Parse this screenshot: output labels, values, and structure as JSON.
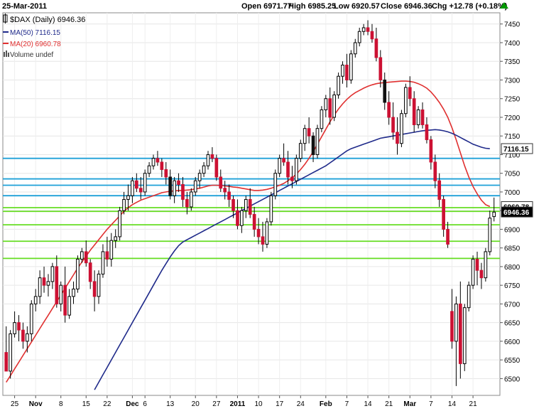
{
  "header": {
    "date": "25-Mar-2011",
    "open": "Open 6971.77",
    "high": "High 6985.25",
    "low": "Low 6920.57",
    "close": "Close 6946.36",
    "chg": "Chg +12.78 (+0.18%)",
    "chg_arrow_color": "#009900"
  },
  "legend": {
    "symbol_line": "$DAX (Daily) 6946.36",
    "ma50_line": "MA(50) 7116.15",
    "ma20_line": "MA(20) 6960.78",
    "volume_line": "Volume undef",
    "ma50_color": "#1f2a8a",
    "ma20_color": "#e03030"
  },
  "price_tags": {
    "ma50": "7116.15",
    "ma20": "6960.78",
    "last": "6946.36"
  },
  "chart_data": {
    "type": "candlestick",
    "yticks": [
      6500,
      6550,
      6600,
      6650,
      6700,
      6750,
      6800,
      6850,
      6900,
      6950,
      7000,
      7050,
      7100,
      7150,
      7200,
      7250,
      7300,
      7350,
      7400,
      7450
    ],
    "ylim": [
      6455,
      7480
    ],
    "xticks": [
      {
        "i": 2,
        "label": "25"
      },
      {
        "i": 7,
        "label": "Nov"
      },
      {
        "i": 13,
        "label": "8"
      },
      {
        "i": 19,
        "label": "15"
      },
      {
        "i": 24,
        "label": "22"
      },
      {
        "i": 30,
        "label": "Dec"
      },
      {
        "i": 33,
        "label": "6"
      },
      {
        "i": 39,
        "label": "13"
      },
      {
        "i": 45,
        "label": "20"
      },
      {
        "i": 50,
        "label": "27"
      },
      {
        "i": 55,
        "label": "2011"
      },
      {
        "i": 60,
        "label": "10"
      },
      {
        "i": 65,
        "label": "17"
      },
      {
        "i": 70,
        "label": "24"
      },
      {
        "i": 76,
        "label": "Feb"
      },
      {
        "i": 81,
        "label": "7"
      },
      {
        "i": 86,
        "label": "14"
      },
      {
        "i": 91,
        "label": "21"
      },
      {
        "i": 96,
        "label": "Mar"
      },
      {
        "i": 101,
        "label": "7"
      },
      {
        "i": 106,
        "label": "14"
      },
      {
        "i": 111,
        "label": "21"
      }
    ],
    "hlines_blue": [
      7090,
      7035,
      7018,
      6990
    ],
    "hlines_green": [
      6958,
      6948,
      6912,
      6868,
      6822
    ],
    "blue_line_color": "#1ea0d8",
    "green_line_color": "#66dd22",
    "bull_color": "#ffffff",
    "bear_color": "#cc1133",
    "bear_dark_color": "#111111",
    "candles": [
      [
        6570,
        6640,
        6530,
        6520
      ],
      [
        6520,
        6630,
        6500,
        6620
      ],
      [
        6620,
        6680,
        6610,
        6650
      ],
      [
        6650,
        6670,
        6600,
        6630
      ],
      [
        6630,
        6650,
        6580,
        6600
      ],
      [
        6600,
        6640,
        6570,
        6620
      ],
      [
        6620,
        6710,
        6600,
        6700
      ],
      [
        6700,
        6740,
        6680,
        6720
      ],
      [
        6720,
        6790,
        6700,
        6770
      ],
      [
        6770,
        6800,
        6730,
        6750
      ],
      [
        6750,
        6780,
        6720,
        6760
      ],
      [
        6760,
        6810,
        6740,
        6800
      ],
      [
        6800,
        6830,
        6690,
        6700
      ],
      [
        6700,
        6760,
        6680,
        6750
      ],
      [
        6750,
        6800,
        6650,
        6670
      ],
      [
        6670,
        6740,
        6660,
        6720
      ],
      [
        6720,
        6760,
        6700,
        6740
      ],
      [
        6740,
        6830,
        6730,
        6820
      ],
      [
        6820,
        6850,
        6810,
        6840
      ],
      [
        6840,
        6870,
        6800,
        6810
      ],
      [
        6810,
        6820,
        6740,
        6760
      ],
      [
        6760,
        6790,
        6680,
        6720
      ],
      [
        6720,
        6790,
        6700,
        6780
      ],
      [
        6780,
        6860,
        6770,
        6840
      ],
      [
        6840,
        6880,
        6800,
        6820
      ],
      [
        6820,
        6890,
        6800,
        6870
      ],
      [
        6870,
        6900,
        6850,
        6880
      ],
      [
        6880,
        6960,
        6870,
        6950
      ],
      [
        6950,
        7000,
        6940,
        6980
      ],
      [
        6980,
        7020,
        6950,
        6990
      ],
      [
        6990,
        7040,
        6970,
        7030
      ],
      [
        7030,
        7050,
        7000,
        7010
      ],
      [
        7010,
        7040,
        6980,
        7000
      ],
      [
        7000,
        7060,
        6990,
        7050
      ],
      [
        7050,
        7080,
        7040,
        7070
      ],
      [
        7070,
        7100,
        7060,
        7090
      ],
      [
        7090,
        7110,
        7070,
        7080
      ],
      [
        7080,
        7090,
        7040,
        7060
      ],
      [
        7060,
        7080,
        7020,
        7040
      ],
      [
        7040,
        7060,
        6980,
        6990
      ],
      [
        6990,
        7040,
        6970,
        7030
      ],
      [
        7030,
        7050,
        7000,
        7020
      ],
      [
        7020,
        7040,
        6960,
        6980
      ],
      [
        6980,
        7000,
        6940,
        6960
      ],
      [
        6960,
        7010,
        6950,
        7000
      ],
      [
        7000,
        7040,
        6990,
        7030
      ],
      [
        7030,
        7060,
        7010,
        7050
      ],
      [
        7050,
        7080,
        7040,
        7070
      ],
      [
        7070,
        7110,
        7060,
        7100
      ],
      [
        7100,
        7120,
        7080,
        7090
      ],
      [
        7090,
        7100,
        7030,
        7040
      ],
      [
        7040,
        7060,
        7000,
        7010
      ],
      [
        7010,
        7030,
        6980,
        7000
      ],
      [
        7000,
        7020,
        6960,
        6980
      ],
      [
        6980,
        6990,
        6930,
        6950
      ],
      [
        6950,
        6980,
        6900,
        6910
      ],
      [
        6910,
        6960,
        6890,
        6950
      ],
      [
        6950,
        6990,
        6930,
        6980
      ],
      [
        6980,
        7010,
        6930,
        6940
      ],
      [
        6940,
        6960,
        6880,
        6900
      ],
      [
        6900,
        6930,
        6860,
        6880
      ],
      [
        6880,
        6920,
        6840,
        6860
      ],
      [
        6860,
        6930,
        6850,
        6920
      ],
      [
        6920,
        7000,
        6910,
        6990
      ],
      [
        6990,
        7060,
        6980,
        7050
      ],
      [
        7050,
        7100,
        7040,
        7090
      ],
      [
        7090,
        7130,
        7070,
        7080
      ],
      [
        7080,
        7110,
        7020,
        7040
      ],
      [
        7040,
        7070,
        7010,
        7030
      ],
      [
        7030,
        7100,
        7020,
        7090
      ],
      [
        7090,
        7140,
        7080,
        7130
      ],
      [
        7130,
        7180,
        7110,
        7170
      ],
      [
        7170,
        7200,
        7130,
        7150
      ],
      [
        7150,
        7160,
        7080,
        7100
      ],
      [
        7100,
        7180,
        7090,
        7170
      ],
      [
        7170,
        7230,
        7160,
        7220
      ],
      [
        7220,
        7260,
        7200,
        7250
      ],
      [
        7250,
        7280,
        7180,
        7200
      ],
      [
        7200,
        7270,
        7190,
        7260
      ],
      [
        7260,
        7320,
        7250,
        7310
      ],
      [
        7310,
        7350,
        7290,
        7340
      ],
      [
        7340,
        7370,
        7280,
        7300
      ],
      [
        7300,
        7380,
        7290,
        7370
      ],
      [
        7370,
        7410,
        7360,
        7400
      ],
      [
        7400,
        7440,
        7390,
        7430
      ],
      [
        7430,
        7450,
        7420,
        7440
      ],
      [
        7440,
        7460,
        7420,
        7430
      ],
      [
        7430,
        7450,
        7400,
        7410
      ],
      [
        7410,
        7440,
        7350,
        7360
      ],
      [
        7360,
        7380,
        7280,
        7300
      ],
      [
        7300,
        7320,
        7220,
        7240
      ],
      [
        7240,
        7270,
        7180,
        7200
      ],
      [
        7200,
        7240,
        7140,
        7160
      ],
      [
        7160,
        7200,
        7100,
        7130
      ],
      [
        7130,
        7220,
        7120,
        7210
      ],
      [
        7210,
        7290,
        7200,
        7280
      ],
      [
        7280,
        7310,
        7230,
        7250
      ],
      [
        7250,
        7270,
        7160,
        7180
      ],
      [
        7180,
        7230,
        7170,
        7220
      ],
      [
        7220,
        7240,
        7170,
        7180
      ],
      [
        7180,
        7200,
        7130,
        7140
      ],
      [
        7140,
        7150,
        7060,
        7080
      ],
      [
        7080,
        7100,
        7010,
        7030
      ],
      [
        7030,
        7050,
        6960,
        6980
      ],
      [
        6980,
        6990,
        6880,
        6900
      ],
      [
        6900,
        6920,
        6850,
        6860
      ],
      [
        6680,
        6740,
        6580,
        6600
      ],
      [
        6600,
        6720,
        6480,
        6700
      ],
      [
        6700,
        6760,
        6500,
        6540
      ],
      [
        6540,
        6700,
        6520,
        6690
      ],
      [
        6690,
        6760,
        6680,
        6750
      ],
      [
        6750,
        6830,
        6740,
        6820
      ],
      [
        6820,
        6840,
        6750,
        6790
      ],
      [
        6790,
        6810,
        6740,
        6770
      ],
      [
        6770,
        6850,
        6760,
        6840
      ],
      [
        6840,
        6950,
        6830,
        6930
      ],
      [
        6934,
        6985,
        6921,
        6946
      ]
    ],
    "ma20": [
      6490,
      6508,
      6526,
      6544,
      6562,
      6580,
      6598,
      6616,
      6634,
      6652,
      6670,
      6688,
      6706,
      6724,
      6742,
      6760,
      6778,
      6796,
      6812,
      6828,
      6844,
      6858,
      6872,
      6886,
      6900,
      6912,
      6924,
      6936,
      6948,
      6958,
      6966,
      6972,
      6978,
      6982,
      6986,
      6990,
      6994,
      6998,
      7000,
      7002,
      7003,
      7004,
      7004,
      7005,
      7006,
      7008,
      7010,
      7013,
      7016,
      7018,
      7018,
      7017,
      7016,
      7015,
      7013,
      7012,
      7010,
      7008,
      7006,
      7004,
      7004,
      7005,
      7007,
      7010,
      7014,
      7018,
      7023,
      7030,
      7038,
      7048,
      7060,
      7074,
      7090,
      7108,
      7128,
      7148,
      7168,
      7188,
      7206,
      7222,
      7236,
      7248,
      7258,
      7266,
      7272,
      7278,
      7283,
      7287,
      7290,
      7292,
      7293,
      7294,
      7295,
      7296,
      7297,
      7297,
      7296,
      7294,
      7290,
      7285,
      7278,
      7268,
      7255,
      7240,
      7222,
      7200,
      7172,
      7140,
      7105,
      7070,
      7040,
      7015,
      6995,
      6978,
      6966,
      6961
    ],
    "ma50": [
      null,
      null,
      null,
      null,
      null,
      null,
      null,
      null,
      null,
      null,
      null,
      null,
      null,
      null,
      null,
      null,
      null,
      null,
      null,
      null,
      null,
      6470,
      6490,
      6510,
      6530,
      6550,
      6570,
      6590,
      6610,
      6630,
      6650,
      6670,
      6690,
      6710,
      6730,
      6750,
      6770,
      6790,
      6808,
      6826,
      6842,
      6856,
      6866,
      6872,
      6878,
      6884,
      6890,
      6896,
      6902,
      6908,
      6914,
      6920,
      6926,
      6932,
      6938,
      6944,
      6950,
      6956,
      6962,
      6968,
      6974,
      6980,
      6986,
      6992,
      6998,
      7004,
      7010,
      7016,
      7022,
      7028,
      7034,
      7040,
      7046,
      7052,
      7058,
      7064,
      7070,
      7078,
      7086,
      7094,
      7102,
      7110,
      7116,
      7120,
      7124,
      7128,
      7132,
      7136,
      7140,
      7144,
      7146,
      7148,
      7150,
      7152,
      7154,
      7156,
      7158,
      7160,
      7162,
      7164,
      7165,
      7166,
      7167,
      7166,
      7164,
      7161,
      7157,
      7152,
      7146,
      7140,
      7134,
      7128,
      7124,
      7120,
      7117,
      7116
    ]
  }
}
